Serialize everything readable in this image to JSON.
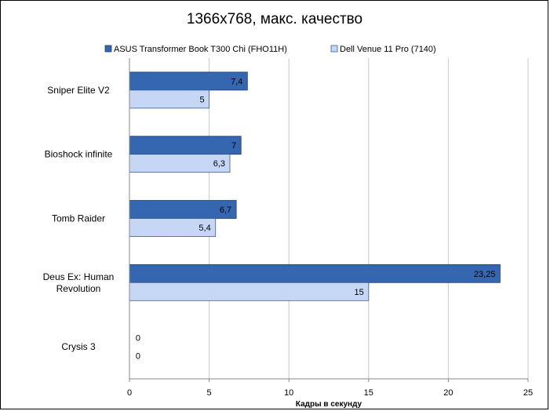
{
  "chart_data": {
    "type": "bar",
    "orientation": "horizontal",
    "title": "1366x768, макс. качество",
    "xlabel": "Кадры в секунду",
    "ylabel": "",
    "categories": [
      "Sniper Elite V2",
      "Bioshock infinite",
      "Tomb Raider",
      "Deus Ex: Human Revolution",
      "Crysis 3"
    ],
    "category_lines": [
      [
        "Sniper Elite V2"
      ],
      [
        "Bioshock infinite"
      ],
      [
        "Tomb Raider"
      ],
      [
        "Deus Ex: Human",
        "Revolution"
      ],
      [
        "Crysis 3"
      ]
    ],
    "series": [
      {
        "name": "ASUS Transformer Book T300 Chi (FHO11H)",
        "values": [
          7.4,
          7,
          6.7,
          23.25,
          0
        ],
        "labels": [
          "7,4",
          "7",
          "6,7",
          "23,25",
          "0"
        ],
        "color": "#3567b0"
      },
      {
        "name": "Dell Venue 11 Pro (7140)",
        "values": [
          5,
          6.3,
          5.4,
          15,
          0
        ],
        "labels": [
          "5",
          "6,3",
          "5,4",
          "15",
          "0"
        ],
        "color": "#c6d7f5"
      }
    ],
    "xlim": [
      0,
      25
    ],
    "xticks": [
      0,
      5,
      10,
      15,
      20,
      25
    ],
    "grid": true,
    "legend_position": "top"
  }
}
